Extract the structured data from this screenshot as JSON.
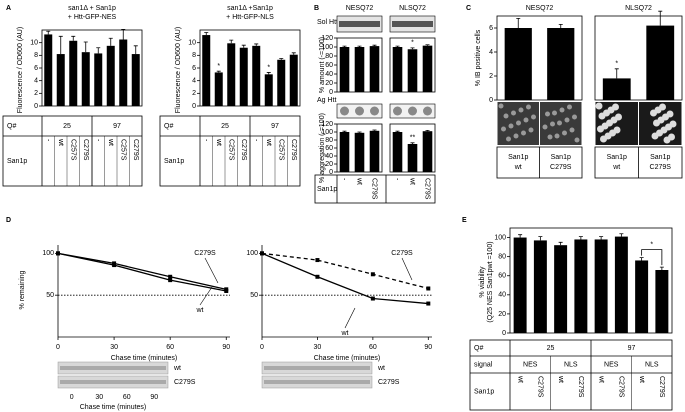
{
  "panel_labels": [
    "A",
    "B",
    "C",
    "D",
    "E"
  ],
  "chart_data": [
    {
      "type": "bar",
      "title": [
        "san1Δ + San1p",
        "+ Htt-GFP-NES"
      ],
      "ylabel": "Fluorescence / OD600 (AU)",
      "categories": [
        "-",
        "wt",
        "C257S",
        "C279S",
        "-",
        "wt",
        "C257S",
        "C279S"
      ],
      "values": [
        11.3,
        8.2,
        10.3,
        8.5,
        8.3,
        9.5,
        10.5,
        8.2
      ],
      "errors": [
        0.5,
        2.8,
        0.7,
        1.6,
        0.9,
        1.2,
        1.6,
        1.3
      ],
      "color": "#000000",
      "ylim": [
        0,
        12
      ],
      "yticks": [
        0,
        2,
        4,
        6,
        8,
        10
      ],
      "groups": [
        "25",
        "97"
      ],
      "row_labels": [
        "Q#",
        "San1p"
      ]
    },
    {
      "type": "bar",
      "title": [
        "san1Δ +San1p",
        "+ Htt-GFP-NLS"
      ],
      "ylabel": "Fluorescence / OD600 (AU)",
      "categories": [
        "-",
        "wt",
        "C257S",
        "C279S",
        "-",
        "wt",
        "C257S",
        "C279S"
      ],
      "values": [
        11.2,
        5.3,
        9.9,
        9.2,
        9.5,
        5.0,
        7.3,
        8.1
      ],
      "errors": [
        0.4,
        0.2,
        0.5,
        0.4,
        0.3,
        0.3,
        0.2,
        0.3
      ],
      "color": "#000000",
      "ylim": [
        0,
        12
      ],
      "yticks": [
        0,
        2,
        4,
        6,
        8,
        10
      ],
      "groups": [
        "25",
        "97"
      ],
      "row_labels": [
        "Q#",
        "San1p"
      ],
      "annotations": [
        {
          "text": "*",
          "index": 1
        },
        {
          "text": "*",
          "index": 5
        }
      ]
    },
    {
      "type": "bar",
      "groups": [
        "NESQ72",
        "NLSQ72"
      ],
      "blot_label": "Sol Htt",
      "ylabel": "% amount (-=100)",
      "values": [
        100,
        100,
        102,
        100,
        95,
        103
      ],
      "errors": [
        2,
        2,
        2,
        2,
        3,
        2
      ],
      "color": "#000000",
      "ylim": [
        0,
        120
      ],
      "yticks": [
        0,
        20,
        40,
        60,
        80,
        100,
        120
      ],
      "annotations": [
        {
          "text": "*",
          "index": 4
        }
      ]
    },
    {
      "type": "bar",
      "blot_label": "Ag Htt",
      "ylabel": "% aggregation (-=100)",
      "categories": [
        "-",
        "wt",
        "C279S",
        "-",
        "wt",
        "C279S"
      ],
      "values": [
        100,
        98,
        103,
        100,
        70,
        102
      ],
      "errors": [
        2,
        2,
        2,
        2,
        3,
        2
      ],
      "color": "#000000",
      "ylim": [
        0,
        120
      ],
      "yticks": [
        0,
        20,
        40,
        60,
        80,
        100,
        120
      ],
      "row_labels": [
        "San1p"
      ],
      "annotations": [
        {
          "text": "**",
          "index": 4
        }
      ]
    },
    {
      "type": "bar",
      "groups": [
        "NESQ72",
        "NLSQ72"
      ],
      "ylabel": "% IB positive cells",
      "categories": [
        [
          "San1p",
          "wt"
        ],
        [
          "San1p",
          "C279S"
        ],
        [
          "San1p",
          "wt"
        ],
        [
          "San1p",
          "C279S"
        ]
      ],
      "values": [
        6.0,
        6.0,
        1.8,
        6.2
      ],
      "errors": [
        0.8,
        0.3,
        0.8,
        1.2
      ],
      "color": "#000000",
      "ylim": [
        0,
        7
      ],
      "yticks": [
        0,
        2,
        4,
        6
      ],
      "annotations": [
        {
          "text": "*",
          "index": 2
        }
      ]
    },
    {
      "type": "line",
      "ylabel": "% remaining",
      "xlabel": "Chase time (minutes)",
      "x": [
        0,
        30,
        60,
        90
      ],
      "xlim": [
        0,
        92
      ],
      "xticks": [
        0,
        30,
        60,
        90
      ],
      "ylim": [
        0,
        110
      ],
      "yticks": [
        50,
        100
      ],
      "reference_line": 50,
      "series": [
        {
          "name": "wt",
          "color": "#000000",
          "dash": false,
          "values": [
            100,
            86,
            68,
            55
          ]
        },
        {
          "name": "C279S",
          "color": "#000000",
          "dash": false,
          "values": [
            100,
            88,
            72,
            57
          ]
        }
      ],
      "blot_rows": [
        "wt",
        "C279S"
      ],
      "blot_ticks": [
        0,
        30,
        60,
        90
      ],
      "blot_xlabel": "Chase time (minutes)"
    },
    {
      "type": "line",
      "xlabel": "Chase time (minutes)",
      "x": [
        0,
        30,
        60,
        90
      ],
      "xlim": [
        0,
        92
      ],
      "xticks": [
        0,
        30,
        60,
        90
      ],
      "ylim": [
        0,
        110
      ],
      "yticks": [
        50,
        100
      ],
      "reference_line": 50,
      "series": [
        {
          "name": "wt",
          "color": "#000000",
          "dash": false,
          "values": [
            100,
            72,
            46,
            40
          ]
        },
        {
          "name": "C279S",
          "color": "#000000",
          "dash": true,
          "values": [
            100,
            92,
            75,
            58
          ]
        }
      ],
      "blot_rows": [
        "wt",
        "C279S"
      ]
    },
    {
      "type": "bar",
      "ylabel": [
        "% viability",
        "(Q25 NES San1pwt =100)"
      ],
      "categories": [
        "wt",
        "C279S",
        "wt",
        "C279S",
        "wt",
        "C279S",
        "wt",
        "C279S"
      ],
      "values": [
        100,
        97,
        92,
        98,
        98,
        101,
        76,
        66
      ],
      "errors": [
        3,
        4,
        3,
        3,
        3,
        3,
        3,
        3
      ],
      "color": "#000000",
      "ylim": [
        0,
        110
      ],
      "yticks": [
        0,
        20,
        40,
        60,
        80,
        100
      ],
      "groups": [
        "25",
        "97"
      ],
      "subgroups": [
        "NES",
        "NLS",
        "NES",
        "NLS"
      ],
      "row_labels": [
        "Q#",
        "signal",
        "San1p"
      ],
      "annotations": [
        {
          "text": "*",
          "index": [
            6,
            7
          ]
        }
      ]
    }
  ]
}
